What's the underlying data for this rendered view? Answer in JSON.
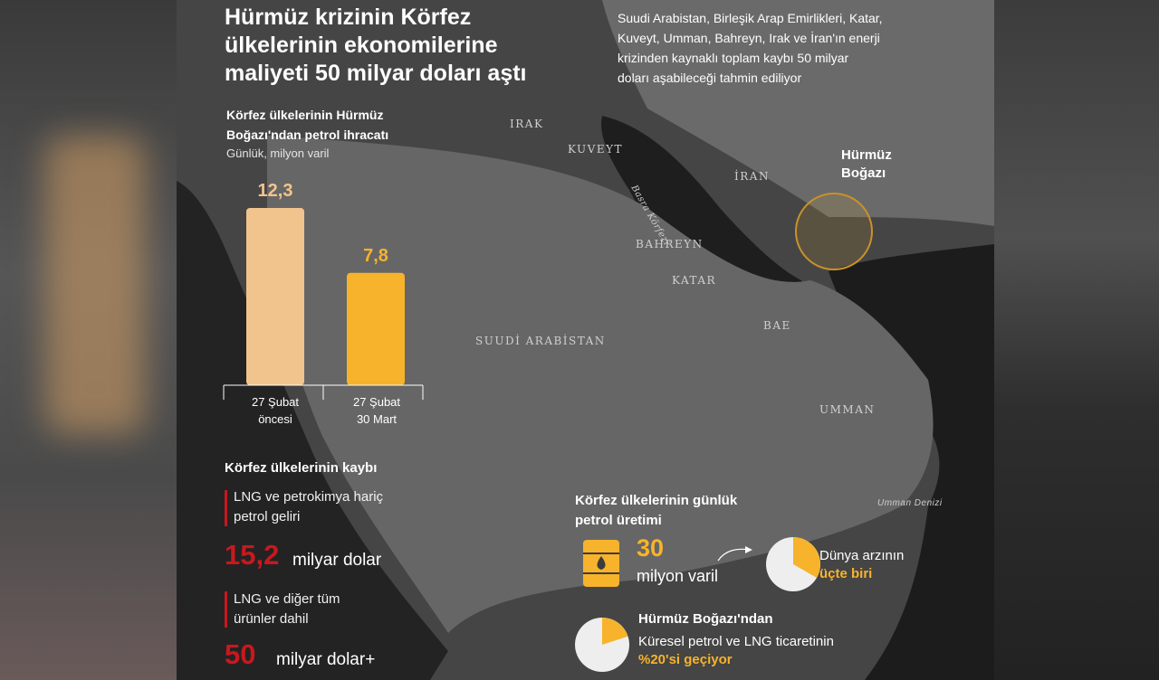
{
  "headline": [
    "Hürmüz krizinin Körfez",
    "ülkelerinin ekonomilerine",
    "maliyeti 50 milyar doları aştı"
  ],
  "subhead": [
    "Suudi Arabistan, Birleşik Arap Emirlikleri, Katar,",
    "Kuveyt, Umman, Bahreyn, Irak ve İran'ın enerji",
    "krizinden kaynaklı toplam kaybı 50 milyar",
    "doları aşabileceği tahmin ediliyor"
  ],
  "map_labels": {
    "irak": "IRAK",
    "kuveyt": "KUVEYT",
    "iran": "İRAN",
    "basra": "Basra Körfezi",
    "bahreyn": "BAHREYN",
    "katar": "KATAR",
    "suudi": "SUUDİ ARABİSTAN",
    "bae": "BAE",
    "umman": "UMMAN",
    "umman_denizi": "Umman Denizi",
    "hormuz": [
      "Hürmüz",
      "Boğazı"
    ]
  },
  "chart_data": {
    "type": "bar",
    "title": [
      "Körfez ülkelerinin Hürmüz",
      "Boğazı'ndan petrol ihracatı"
    ],
    "ylabel": "Günlük, milyon varil",
    "categories": [
      [
        "27 Şubat",
        "öncesi"
      ],
      [
        "27 Şubat",
        "30 Mart"
      ]
    ],
    "values": [
      12.3,
      7.8
    ],
    "value_labels": [
      "12,3",
      "7,8"
    ],
    "ylim": [
      0,
      12.3
    ],
    "colors": [
      "#f2c48d",
      "#f7b32b"
    ]
  },
  "losses": {
    "title": "Körfez ülkelerinin kaybı",
    "items": [
      {
        "label": [
          "LNG ve petrokimya hariç",
          "petrol geliri"
        ],
        "value": "15,2",
        "unit": "milyar dolar"
      },
      {
        "label": [
          "LNG ve diğer tüm",
          "ürünler dahil"
        ],
        "value": "50",
        "unit": "milyar dolar+"
      }
    ]
  },
  "production": {
    "title": [
      "Körfez ülkelerinin günlük",
      "petrol üretimi"
    ],
    "value": "30",
    "unit": "milyon varil",
    "share_fraction": 0.333,
    "share_label": "Dünya arzının",
    "share_value": "üçte biri"
  },
  "hormuz_trade": {
    "title": "Hürmüz Boğazı'ndan",
    "line": "Küresel petrol ve LNG ticaretinin",
    "value": "%20'si geçiyor",
    "share_fraction": 0.2
  },
  "colors": {
    "accent": "#f7b32b",
    "red": "#c8181e",
    "bar_light": "#f2c48d"
  }
}
